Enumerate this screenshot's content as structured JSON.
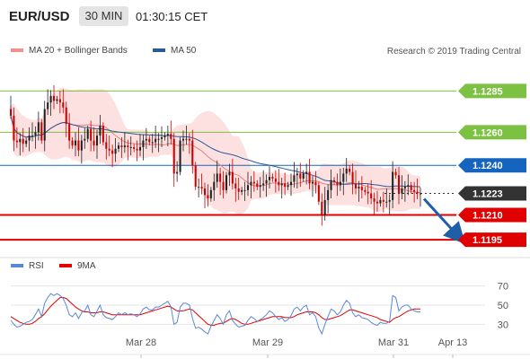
{
  "header": {
    "pair": "EUR/USD",
    "timeframe": "30 MIN",
    "time": "01:30:15 CET"
  },
  "legend": {
    "ma20": "MA 20 + Bollinger Bands",
    "ma50": "MA 50",
    "rsi": "RSI",
    "rsi_ma": "9MA",
    "credit": "Research © 2019 Trading Central"
  },
  "colors": {
    "up_candle": "#222222",
    "down_candle": "#cc0000",
    "ma20": "#e88080",
    "bollinger_fill": "#fde0e0",
    "ma50": "#2a5a9a",
    "resistance": "#7dc142",
    "pivot": "#1565c0",
    "support": "#e00000",
    "current": "#333333",
    "rsi": "#5b87d6",
    "rsi_ma": "#e00000"
  },
  "chart_data": [
    {
      "type": "candlestick",
      "symbol": "EUR/USD",
      "timeframe": "30 MIN",
      "x_ticks": [
        "Mar 28",
        "Mar 29",
        "Mar 31",
        "Apr 13"
      ],
      "ylim": [
        1.1188,
        1.1302
      ],
      "levels": [
        {
          "value": 1.1285,
          "label": "1.1285",
          "role": "resistance"
        },
        {
          "value": 1.126,
          "label": "1.1260",
          "role": "resistance"
        },
        {
          "value": 1.124,
          "label": "1.1240",
          "role": "pivot"
        },
        {
          "value": 1.1223,
          "label": "1.1223",
          "role": "current"
        },
        {
          "value": 1.121,
          "label": "1.1210",
          "role": "support"
        },
        {
          "value": 1.1195,
          "label": "1.1195",
          "role": "support"
        }
      ],
      "forecast": {
        "from": 1.1223,
        "to": 1.1195,
        "direction": "down"
      },
      "close": [
        1.127,
        1.1255,
        1.1254,
        1.1256,
        1.1253,
        1.1255,
        1.1258,
        1.1258,
        1.126,
        1.1266,
        1.1255,
        1.1274,
        1.1278,
        1.1282,
        1.1279,
        1.128,
        1.1278,
        1.1275,
        1.1265,
        1.1255,
        1.1252,
        1.1255,
        1.1249,
        1.1255,
        1.1256,
        1.1262,
        1.1255,
        1.1252,
        1.1258,
        1.1264,
        1.1254,
        1.125,
        1.1249,
        1.1247,
        1.125,
        1.1252,
        1.1251,
        1.1252,
        1.1251,
        1.1251,
        1.125,
        1.1249,
        1.1251,
        1.1255,
        1.1256,
        1.1254,
        1.1254,
        1.1256,
        1.1256,
        1.1257,
        1.1258,
        1.1259,
        1.1256,
        1.1235,
        1.1236,
        1.1255,
        1.1256,
        1.1256,
        1.1255,
        1.124,
        1.1227,
        1.1227,
        1.1226,
        1.1222,
        1.122,
        1.1225,
        1.123,
        1.1235,
        1.123,
        1.1225,
        1.1234,
        1.1236,
        1.1229,
        1.1226,
        1.1224,
        1.1225,
        1.1225,
        1.1228,
        1.123,
        1.1229,
        1.1227,
        1.1228,
        1.1229,
        1.1231,
        1.1233,
        1.1232,
        1.123,
        1.1228,
        1.1229,
        1.1227,
        1.1228,
        1.123,
        1.1234,
        1.1235,
        1.1232,
        1.1235,
        1.1236,
        1.1229,
        1.123,
        1.1228,
        1.1218,
        1.121,
        1.1219,
        1.1225,
        1.1231,
        1.123,
        1.1228,
        1.123,
        1.1235,
        1.1238,
        1.1236,
        1.1229,
        1.1226,
        1.1227,
        1.1225,
        1.1224,
        1.1223,
        1.122,
        1.1218,
        1.1217,
        1.1219,
        1.1218,
        1.1218,
        1.1219,
        1.1236,
        1.1234,
        1.1223,
        1.1226,
        1.1227,
        1.1228,
        1.1225,
        1.1224,
        1.1223,
        1.1223
      ]
    },
    {
      "type": "line",
      "name_series": [
        "RSI",
        "9MA"
      ],
      "x_ticks": [
        "Mar 28",
        "Mar 29",
        "Mar 31",
        "Apr 13"
      ],
      "y_ticks": [
        70,
        50,
        30
      ],
      "ylim": [
        20,
        80
      ],
      "series": [
        {
          "name": "RSI",
          "values": [
            34,
            30,
            27,
            28,
            30,
            32,
            33,
            35,
            40,
            46,
            38,
            52,
            58,
            62,
            60,
            62,
            60,
            57,
            50,
            40,
            38,
            42,
            36,
            42,
            44,
            50,
            40,
            38,
            44,
            50,
            40,
            37,
            36,
            35,
            38,
            42,
            40,
            42,
            40,
            41,
            40,
            38,
            41,
            46,
            48,
            45,
            45,
            48,
            48,
            50,
            52,
            54,
            48,
            30,
            32,
            48,
            52,
            52,
            50,
            36,
            26,
            27,
            25,
            22,
            20,
            28,
            34,
            40,
            36,
            30,
            40,
            44,
            34,
            30,
            27,
            28,
            29,
            34,
            38,
            36,
            33,
            35,
            37,
            40,
            44,
            42,
            38,
            35,
            37,
            33,
            35,
            39,
            46,
            48,
            44,
            48,
            50,
            40,
            42,
            38,
            26,
            20,
            30,
            38,
            46,
            44,
            40,
            43,
            50,
            55,
            52,
            42,
            38,
            40,
            37,
            36,
            35,
            32,
            30,
            29,
            32,
            31,
            31,
            33,
            60,
            58,
            44,
            48,
            50,
            50,
            46,
            44,
            43,
            43
          ]
        },
        {
          "name": "9MA",
          "values": [
            38,
            36,
            34,
            32,
            31,
            30,
            30,
            31,
            33,
            36,
            38,
            41,
            45,
            49,
            52,
            55,
            58,
            58,
            57,
            54,
            51,
            48,
            46,
            44,
            43,
            43,
            42,
            42,
            42,
            43,
            43,
            42,
            41,
            40,
            40,
            40,
            40,
            40,
            40,
            40,
            40,
            40,
            40,
            41,
            42,
            43,
            44,
            45,
            46,
            47,
            48,
            49,
            48,
            46,
            44,
            44,
            44,
            45,
            46,
            45,
            42,
            39,
            36,
            33,
            30,
            29,
            29,
            30,
            31,
            31,
            33,
            35,
            36,
            35,
            33,
            31,
            30,
            30,
            31,
            32,
            33,
            34,
            35,
            36,
            37,
            38,
            38,
            38,
            38,
            37,
            37,
            37,
            38,
            40,
            41,
            42,
            43,
            43,
            43,
            42,
            40,
            37,
            35,
            35,
            36,
            37,
            38,
            39,
            41,
            43,
            45,
            45,
            44,
            43,
            42,
            41,
            40,
            39,
            38,
            37,
            35,
            34,
            33,
            32,
            35,
            37,
            38,
            40,
            42,
            44,
            45,
            46,
            46,
            46
          ]
        }
      ]
    }
  ]
}
